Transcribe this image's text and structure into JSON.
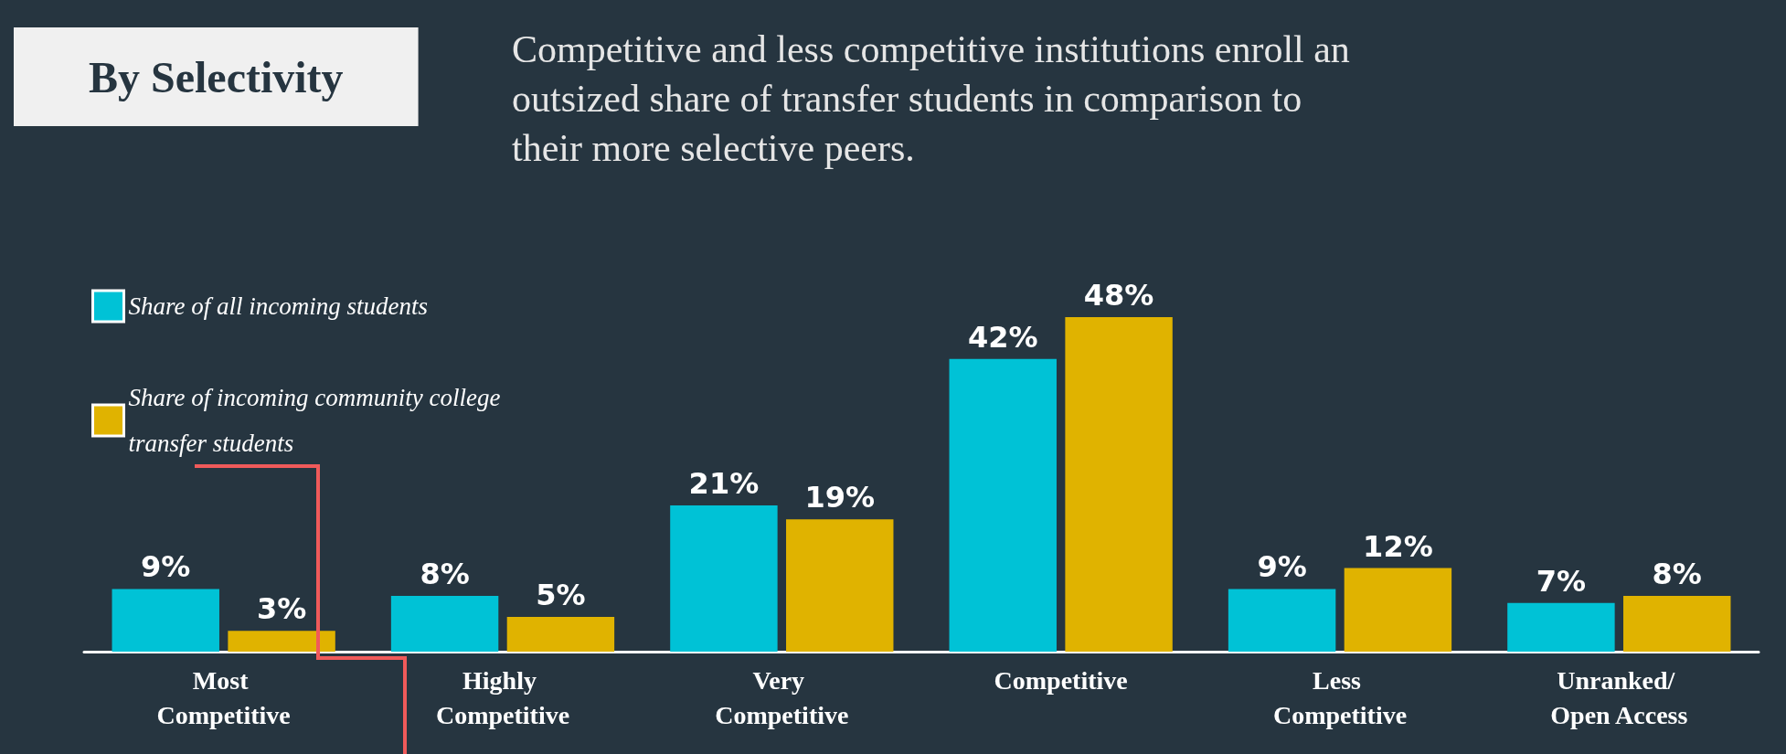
{
  "chart_data": {
    "type": "bar",
    "title": "By Selectivity",
    "subtitle": "Competitive and less competitive institutions enroll an outsized share of transfer students in comparison to their more selective peers.",
    "categories": [
      "Most Competitive",
      "Highly Competitive",
      "Very Competitive",
      "Competitive",
      "Less Competitive",
      "Unranked/ Open Access"
    ],
    "series": [
      {
        "name": "Share of all incoming students",
        "color": "#00c2d6",
        "values": [
          9,
          8,
          21,
          42,
          9,
          7
        ],
        "value_labels": [
          "9%",
          "8%",
          "21%",
          "42%",
          "9%",
          "7%"
        ]
      },
      {
        "name": "Share of incoming community college transfer students",
        "color": "#e0b300",
        "values": [
          3,
          5,
          19,
          48,
          12,
          8
        ],
        "value_labels": [
          "3%",
          "5%",
          "19%",
          "48%",
          "12%",
          "8%"
        ]
      }
    ],
    "legend": "top left"
  }
}
